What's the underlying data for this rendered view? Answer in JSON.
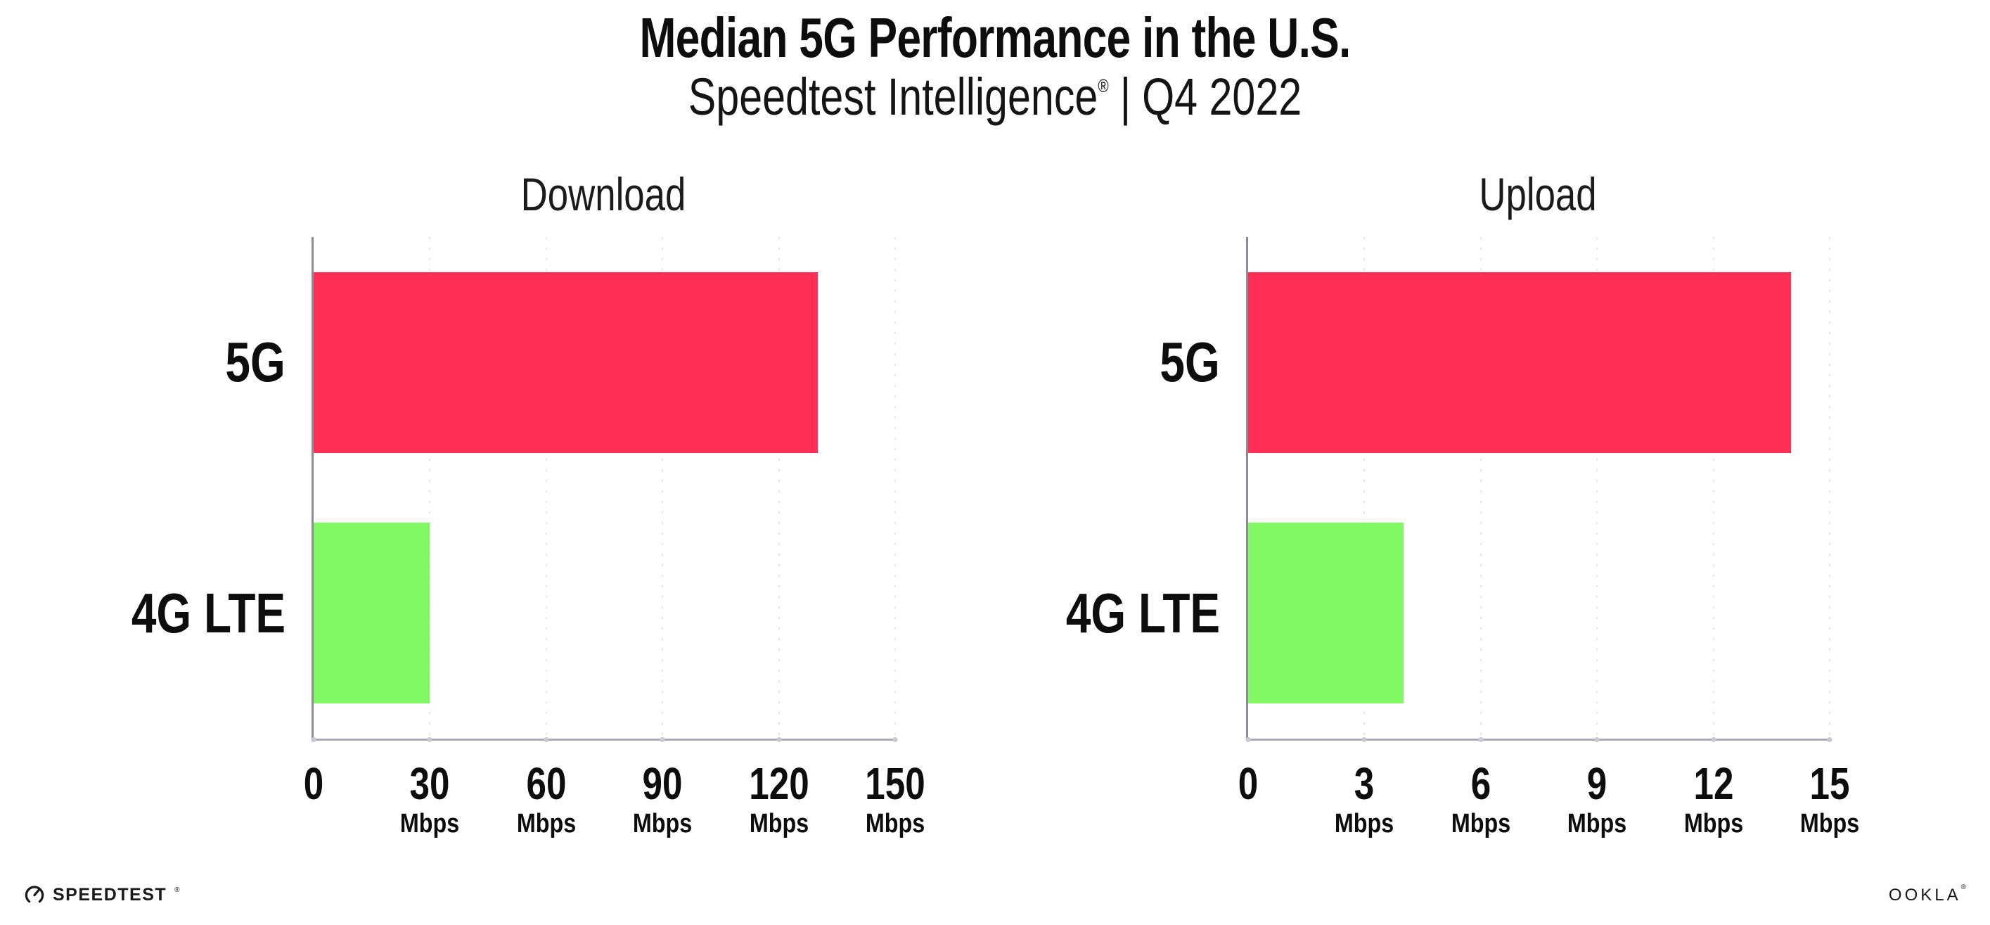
{
  "header": {
    "title": "Median 5G Performance in the U.S.",
    "subtitle_brand": "Speedtest Intelligence",
    "subtitle_reg": "®",
    "subtitle_sep": "|",
    "subtitle_period": "Q4 2022"
  },
  "chart_data": [
    {
      "type": "bar",
      "orientation": "horizontal",
      "title": "Download",
      "categories": [
        "5G",
        "4G LTE"
      ],
      "values": [
        130,
        30
      ],
      "unit": "Mbps",
      "xlabel": "",
      "ylabel": "",
      "xlim": [
        0,
        150
      ],
      "xticks": [
        0,
        30,
        60,
        90,
        120,
        150
      ],
      "grid": true,
      "legend": "none",
      "bar_colors": [
        "#FF2E56",
        "#81F863"
      ]
    },
    {
      "type": "bar",
      "orientation": "horizontal",
      "title": "Upload",
      "categories": [
        "5G",
        "4G LTE"
      ],
      "values": [
        14,
        4
      ],
      "unit": "Mbps",
      "xlabel": "",
      "ylabel": "",
      "xlim": [
        0,
        15
      ],
      "xticks": [
        0,
        3,
        6,
        9,
        12,
        15
      ],
      "grid": true,
      "legend": "none",
      "bar_colors": [
        "#FF2E56",
        "#81F863"
      ]
    }
  ],
  "colors": {
    "bar_5g": "#FF2E56",
    "bar_4g_lte": "#81F863",
    "axis_y": "#8E8B96",
    "axis_x": "#ACAAB4",
    "gridline": "#E6E4EF",
    "tick_dot": "#C9C7D2",
    "text": "#111111"
  },
  "footer": {
    "speedtest_logo_text": "SPEEDTEST",
    "speedtest_logo_reg": "®",
    "ookla_logo_text": "OOKLA",
    "ookla_logo_reg": "®"
  }
}
